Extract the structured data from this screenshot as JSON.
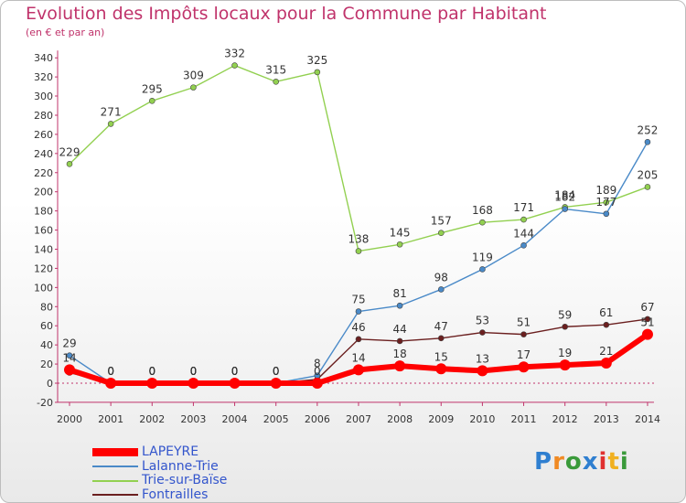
{
  "chart_data": {
    "type": "line",
    "title": "Evolution des Impôts locaux pour la Commune par Habitant",
    "subtitle": "(en € et par an)",
    "categories": [
      "2000",
      "2001",
      "2002",
      "2003",
      "2004",
      "2005",
      "2006",
      "2007",
      "2008",
      "2009",
      "2010",
      "2011",
      "2012",
      "2013",
      "2014"
    ],
    "y_ticks": [
      -20,
      0,
      20,
      40,
      60,
      80,
      100,
      120,
      140,
      160,
      180,
      200,
      220,
      240,
      260,
      280,
      300,
      320,
      340
    ],
    "ylim": [
      -20,
      340
    ],
    "grid": false,
    "legend_position": "bottom-left",
    "series": [
      {
        "name": "LAPEYRE",
        "color": "#ff0000",
        "values": [
          14,
          0,
          0,
          0,
          0,
          0,
          0,
          14,
          18,
          15,
          13,
          17,
          19,
          21,
          51
        ]
      },
      {
        "name": "Lalanne-Trie",
        "color": "#4a8ac8",
        "values": [
          29,
          0,
          0,
          0,
          0,
          0,
          8,
          75,
          81,
          98,
          119,
          144,
          182,
          177,
          252
        ]
      },
      {
        "name": "Trie-sur-Baïse",
        "color": "#92d050",
        "values": [
          229,
          271,
          295,
          309,
          332,
          315,
          325,
          138,
          145,
          157,
          168,
          171,
          184,
          189,
          205
        ]
      },
      {
        "name": "Fontrailles",
        "color": "#6b1f1f",
        "values": [
          11,
          0,
          0,
          0,
          0,
          0,
          4,
          46,
          44,
          47,
          53,
          51,
          59,
          61,
          67
        ]
      }
    ],
    "data_labels": {
      "LAPEYRE": [
        "14",
        "0",
        "0",
        "0",
        "0",
        "0",
        "0",
        "14",
        "18",
        "15",
        "13",
        "17",
        "19",
        "21",
        "51"
      ],
      "Lalanne-Trie": [
        "29",
        "0",
        "0",
        "0",
        "0",
        "0",
        "8",
        "75",
        "81",
        "98",
        "119",
        "144",
        "182",
        "177",
        "252"
      ],
      "Trie-sur-Baïse": [
        "229",
        "271",
        "295",
        "309",
        "332",
        "315",
        "325",
        "138",
        "145",
        "157",
        "168",
        "171",
        "184",
        "189",
        "205"
      ],
      "Fontrailles": [
        "",
        "0",
        "0",
        "0",
        "0",
        "0",
        "",
        "46",
        "44",
        "47",
        "53",
        "51",
        "59",
        "61",
        "67"
      ]
    }
  },
  "logo": {
    "letters": [
      "P",
      "r",
      "o",
      "x",
      "i",
      "t",
      "i"
    ],
    "colors": [
      "#2f7fd0",
      "#f08a24",
      "#3a9a3a",
      "#2f7fd0",
      "#e03030",
      "#f0b020",
      "#3a9a3a"
    ]
  }
}
